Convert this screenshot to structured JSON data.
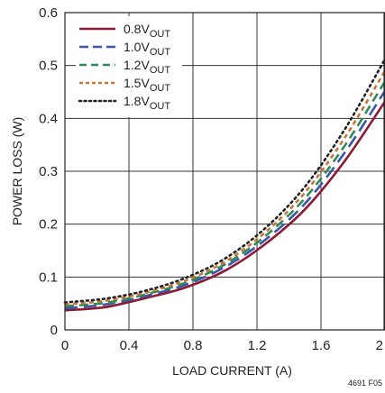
{
  "chart_data": {
    "type": "line",
    "xlabel": "LOAD CURRENT (A)",
    "ylabel": "POWER LOSS (W)",
    "xlim": [
      0,
      2
    ],
    "ylim": [
      0,
      0.6
    ],
    "x_ticks": [
      "0",
      "0.4",
      "0.8",
      "1.2",
      "1.6",
      "2"
    ],
    "y_ticks": [
      "0",
      "0.1",
      "0.2",
      "0.3",
      "0.4",
      "0.5",
      "0.6"
    ],
    "grid": true,
    "legend_position": "top-left",
    "figure_id": "4691 F05",
    "series": [
      {
        "label_main": "0.8V",
        "label_sub": "OUT",
        "color": "#8b1a36",
        "dash": "solid",
        "x": [
          0,
          0.25,
          0.5,
          0.75,
          1.0,
          1.25,
          1.5,
          1.75,
          2.0
        ],
        "y": [
          0.037,
          0.043,
          0.06,
          0.08,
          0.112,
          0.162,
          0.228,
          0.32,
          0.432
        ]
      },
      {
        "label_main": "1.0V",
        "label_sub": "OUT",
        "color": "#3a56a8",
        "dash": "long-dash",
        "x": [
          0,
          0.25,
          0.5,
          0.75,
          1.0,
          1.25,
          1.5,
          1.75,
          2.0
        ],
        "y": [
          0.041,
          0.048,
          0.064,
          0.085,
          0.119,
          0.17,
          0.239,
          0.336,
          0.452
        ]
      },
      {
        "label_main": "1.2V",
        "label_sub": "OUT",
        "color": "#2e8b57",
        "dash": "dash",
        "x": [
          0,
          0.25,
          0.5,
          0.75,
          1.0,
          1.25,
          1.5,
          1.75,
          2.0
        ],
        "y": [
          0.045,
          0.051,
          0.067,
          0.089,
          0.124,
          0.177,
          0.249,
          0.349,
          0.47
        ]
      },
      {
        "label_main": "1.5V",
        "label_sub": "OUT",
        "color": "#c8753a",
        "dash": "short-dash",
        "x": [
          0,
          0.25,
          0.5,
          0.75,
          1.0,
          1.25,
          1.5,
          1.75,
          2.0
        ],
        "y": [
          0.048,
          0.055,
          0.07,
          0.093,
          0.129,
          0.184,
          0.26,
          0.364,
          0.49
        ]
      },
      {
        "label_main": "1.8V",
        "label_sub": "OUT",
        "color": "#222222",
        "dash": "dotted",
        "x": [
          0,
          0.25,
          0.5,
          0.75,
          1.0,
          1.25,
          1.5,
          1.75,
          2.0
        ],
        "y": [
          0.052,
          0.059,
          0.074,
          0.098,
          0.135,
          0.192,
          0.271,
          0.38,
          0.512
        ]
      }
    ]
  }
}
